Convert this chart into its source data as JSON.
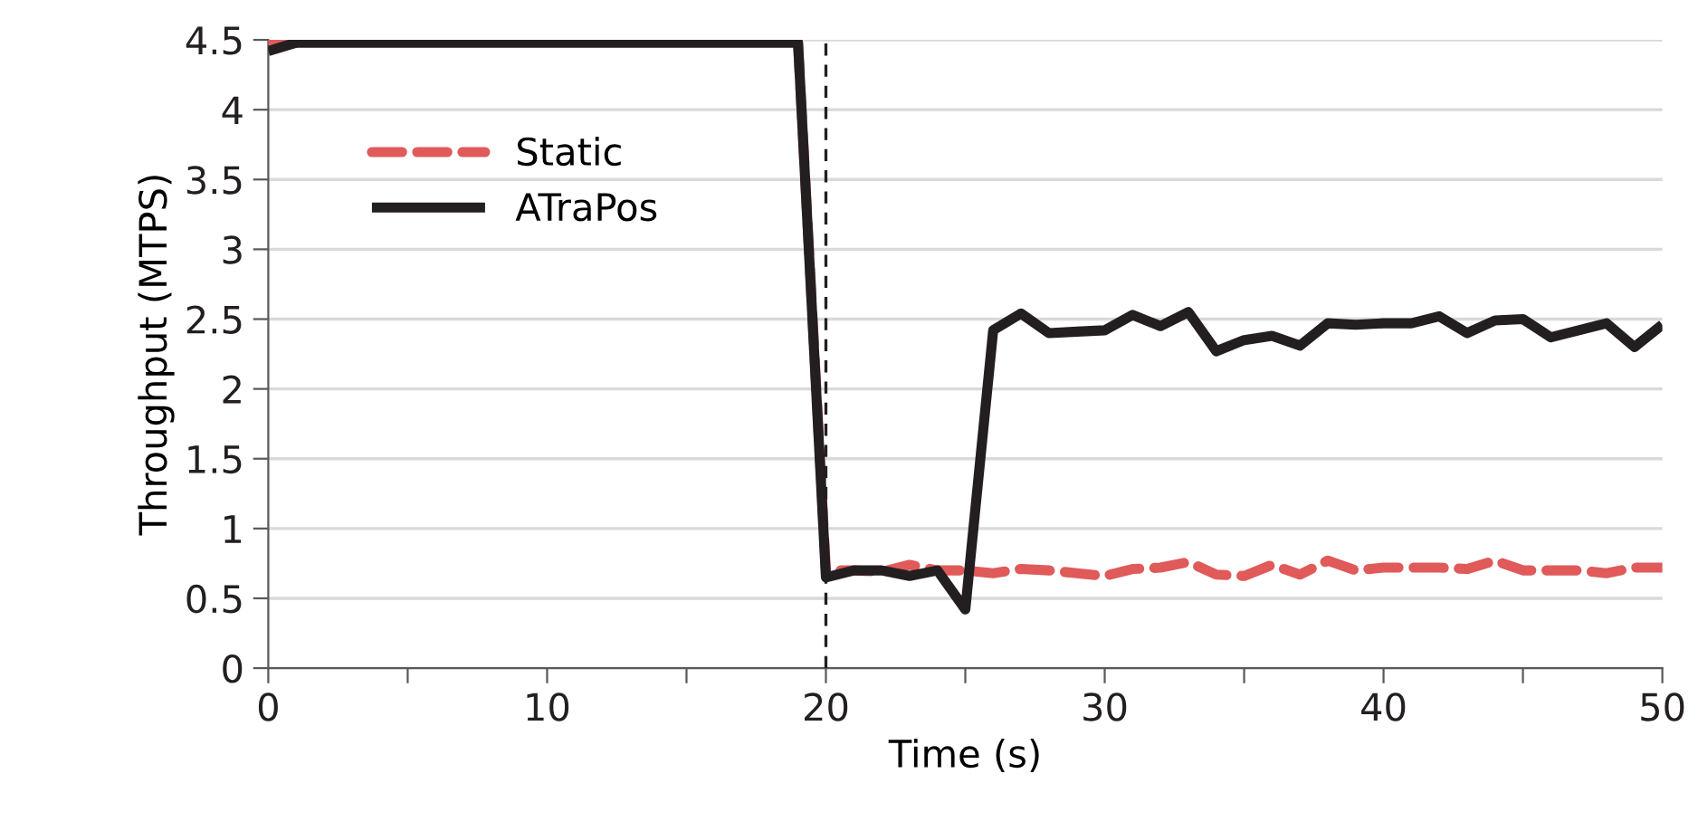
{
  "chart_data": {
    "type": "line",
    "xlabel": "Time (s)",
    "ylabel": "Throughput (MTPS)",
    "x": [
      0,
      1,
      2,
      3,
      4,
      5,
      6,
      7,
      8,
      9,
      10,
      11,
      12,
      13,
      14,
      15,
      16,
      17,
      18,
      19,
      20,
      21,
      22,
      23,
      24,
      25,
      26,
      27,
      28,
      29,
      30,
      31,
      32,
      33,
      34,
      35,
      36,
      37,
      38,
      39,
      40,
      41,
      42,
      43,
      44,
      45,
      46,
      47,
      48,
      49,
      50
    ],
    "series": [
      {
        "name": "Static",
        "color": "#e05a5a",
        "line_style": "dashed",
        "values": [
          4.5,
          4.48,
          null,
          null,
          null,
          null,
          null,
          null,
          null,
          null,
          null,
          null,
          null,
          null,
          null,
          null,
          null,
          null,
          null,
          4.48,
          0.7,
          0.7,
          0.69,
          0.74,
          0.7,
          0.7,
          0.68,
          0.71,
          0.7,
          0.68,
          0.66,
          0.71,
          0.72,
          0.76,
          0.67,
          0.66,
          0.74,
          0.67,
          0.77,
          0.7,
          0.72,
          0.72,
          0.72,
          0.71,
          0.77,
          0.7,
          0.7,
          0.7,
          0.68,
          0.72,
          0.72
        ]
      },
      {
        "name": "ATraPos",
        "color": "#231f20",
        "line_style": "solid",
        "values": [
          4.42,
          4.48,
          4.48,
          4.48,
          4.48,
          4.48,
          4.48,
          4.48,
          4.48,
          4.48,
          4.48,
          4.48,
          4.48,
          4.48,
          4.48,
          4.48,
          4.48,
          4.48,
          4.48,
          4.48,
          0.65,
          0.7,
          0.7,
          0.66,
          0.7,
          0.42,
          2.42,
          2.54,
          2.4,
          2.41,
          2.42,
          2.53,
          2.45,
          2.55,
          2.27,
          2.35,
          2.38,
          2.31,
          2.47,
          2.46,
          2.47,
          2.47,
          2.52,
          2.4,
          2.49,
          2.5,
          2.37,
          2.42,
          2.47,
          2.3,
          2.46
        ]
      }
    ],
    "xlim": [
      0,
      50
    ],
    "xticks": [
      0,
      {
        "value": 5,
        "label": null
      },
      10,
      {
        "value": 15,
        "label": null
      },
      20,
      {
        "value": 25,
        "label": null
      },
      30,
      {
        "value": 35,
        "label": null
      },
      40,
      {
        "value": 45,
        "label": null
      },
      50
    ],
    "ylim": [
      0,
      4.5
    ],
    "yticks": [
      0,
      0.5,
      1,
      1.5,
      2,
      2.5,
      3,
      3.5,
      4,
      4.5
    ],
    "grid": "y",
    "legend": "top left",
    "marker": "none",
    "ref_lines": [
      {
        "axis": "x",
        "value": 20,
        "color": "#231f20",
        "line_style": "dashed"
      }
    ]
  }
}
